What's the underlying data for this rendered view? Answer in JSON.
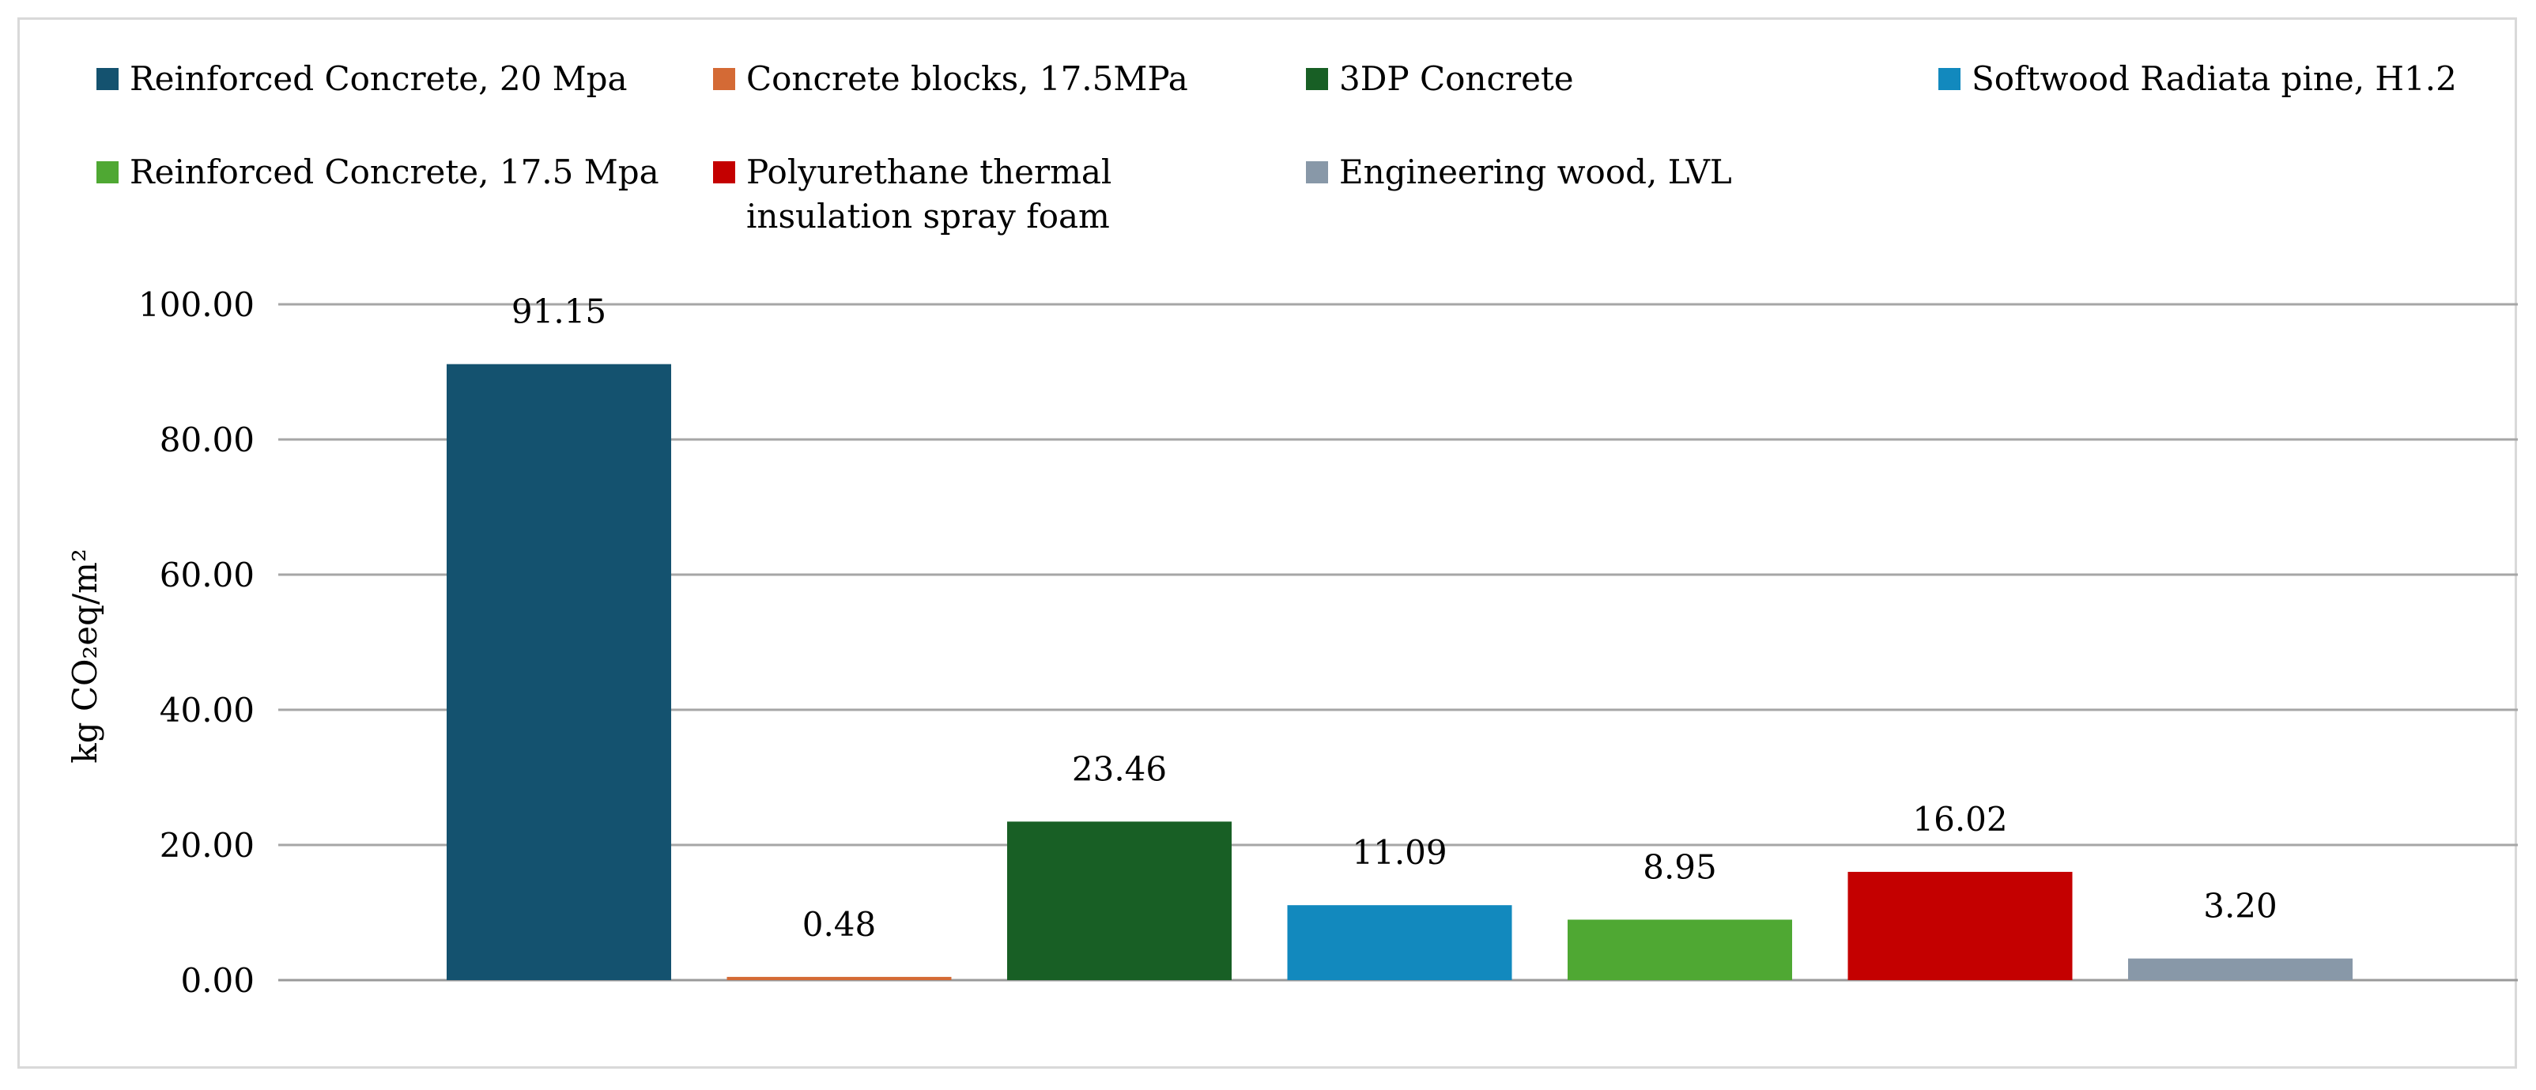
{
  "chart_data": {
    "type": "bar",
    "title": "",
    "xlabel": "",
    "ylabel": "kg CO₂eq/m²",
    "ylim": [
      0,
      100
    ],
    "ytick_step": 20,
    "ytick_labels": [
      "0.00",
      "20.00",
      "40.00",
      "60.00",
      "80.00",
      "100.00"
    ],
    "grid": true,
    "legend_position": "top",
    "categories": [
      "Reinforced Concrete, 20 Mpa",
      "Concrete blocks, 17.5MPa",
      "3DP Concrete",
      "Softwood Radiata pine, H1.2",
      "Reinforced Concrete, 17.5 Mpa",
      "Polyurethane thermal\ninsulation spray foam",
      "Engineering wood, LVL"
    ],
    "values": [
      91.15,
      0.48,
      23.46,
      11.09,
      8.95,
      16.02,
      3.2
    ],
    "value_labels": [
      "91.15",
      "0.48",
      "23.46",
      "11.09",
      "8.95",
      "16.02",
      "3.20"
    ],
    "colors": [
      "#14526f",
      "#d46a35",
      "#185f25",
      "#1289be",
      "#4fa833",
      "#c40000",
      "#8898a8"
    ]
  }
}
